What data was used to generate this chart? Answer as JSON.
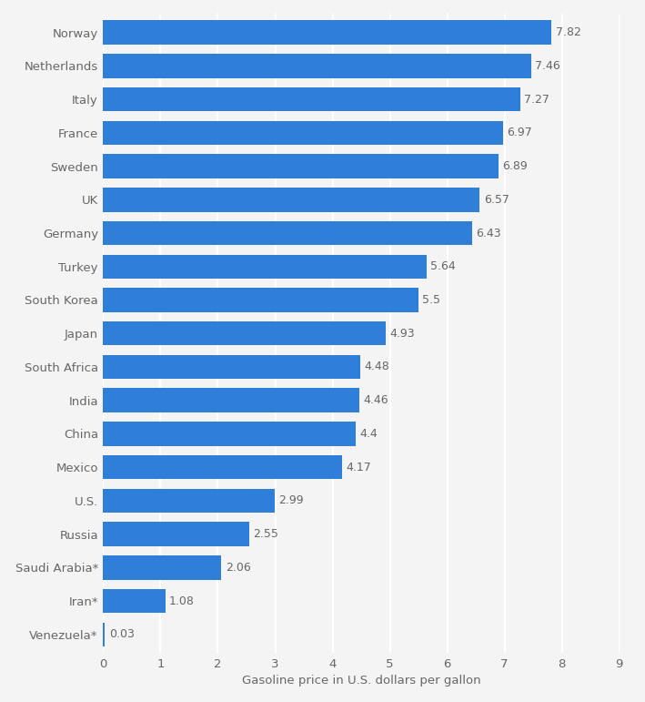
{
  "countries": [
    "Venezuela*",
    "Iran*",
    "Saudi Arabia*",
    "Russia",
    "U.S.",
    "Mexico",
    "China",
    "India",
    "South Africa",
    "Japan",
    "South Korea",
    "Turkey",
    "Germany",
    "UK",
    "Sweden",
    "France",
    "Italy",
    "Netherlands",
    "Norway"
  ],
  "values": [
    0.03,
    1.08,
    2.06,
    2.55,
    2.99,
    4.17,
    4.4,
    4.46,
    4.48,
    4.93,
    5.5,
    5.64,
    6.43,
    6.57,
    6.89,
    6.97,
    7.27,
    7.46,
    7.82
  ],
  "bar_color": "#2f7ed8",
  "label_color": "#666666",
  "background_color": "#f4f4f4",
  "grid_color": "#ffffff",
  "xlabel": "Gasoline price in U.S. dollars per gallon",
  "xlim": [
    0,
    9
  ],
  "xticks": [
    0,
    1,
    2,
    3,
    4,
    5,
    6,
    7,
    8,
    9
  ],
  "bar_height": 0.72,
  "value_fontsize": 9.0,
  "label_fontsize": 9.5,
  "xlabel_fontsize": 9.5
}
